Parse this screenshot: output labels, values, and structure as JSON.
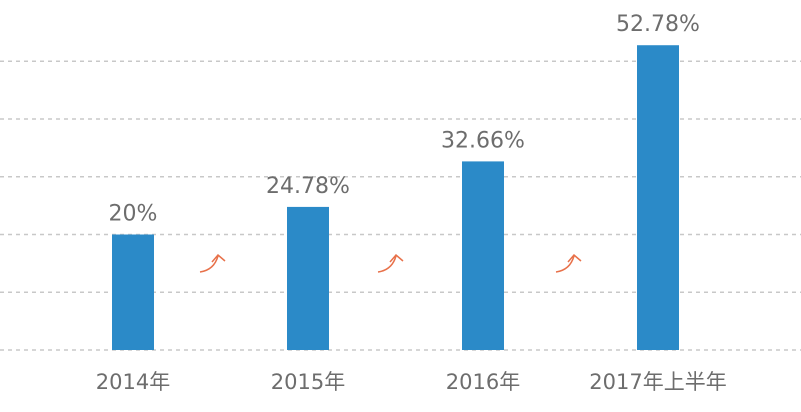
{
  "chart_data": {
    "type": "bar",
    "categories": [
      "2014年",
      "2015年",
      "2016年",
      "2017年上半年"
    ],
    "values": [
      20,
      24.78,
      32.66,
      52.78
    ],
    "value_labels": [
      "20%",
      "24.78%",
      "32.66%",
      "52.78%"
    ],
    "color": "#2b8ac8",
    "ylim": [
      0,
      55
    ],
    "yticks": [
      0,
      10,
      20,
      30,
      40,
      50
    ],
    "grid": true
  }
}
